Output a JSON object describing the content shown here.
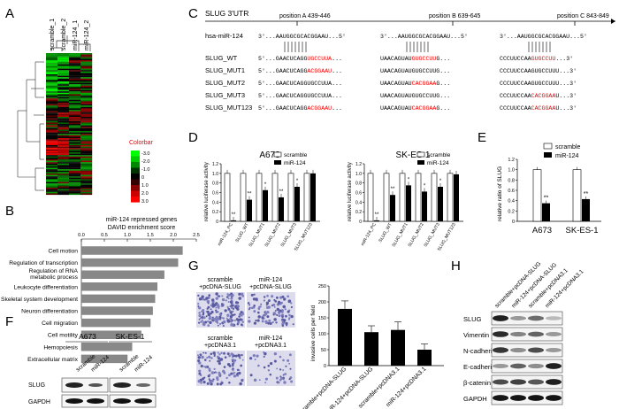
{
  "panels": {
    "A": "A",
    "B": "B",
    "C": "C",
    "D": "D",
    "E": "E",
    "F": "F",
    "G": "G",
    "H": "H"
  },
  "heatmap": {
    "columns": [
      "scramble_1",
      "scramble_2",
      "miR-124_1",
      "miR-124_2"
    ],
    "colorbar_title": "Colorbar",
    "colorbar_ticks": [
      "-3.0",
      "-2.0",
      "-1.0",
      "0",
      "1.0",
      "2.0",
      "3.0"
    ]
  },
  "enrichment": {
    "title_1": "miR-124 repressed genes",
    "title_2": "DAVID enrichment score",
    "ticks": [
      "0.0",
      "0.5",
      "1.0",
      "1.5",
      "2.0",
      "2.5"
    ],
    "items": [
      {
        "label": "Cell motion",
        "value": 2.2
      },
      {
        "label": "Regulation of transcription",
        "value": 2.1
      },
      {
        "label": "Regulation of RNA",
        "label2": "metabolic process",
        "value": 1.8
      },
      {
        "label": "Leukocyte differentiation",
        "value": 1.65
      },
      {
        "label": "Skeletal system development",
        "value": 1.6
      },
      {
        "label": "Neuron differentiation",
        "value": 1.55
      },
      {
        "label": "Cell migration",
        "value": 1.5
      },
      {
        "label": "Cell motility",
        "value": 1.3
      },
      {
        "label": "Hemopoiesis",
        "value": 1.1
      },
      {
        "label": "Extracellular matrix",
        "value": 1.0
      }
    ]
  },
  "utr": {
    "title": "SLUG 3'UTR",
    "positions": [
      "position A 439-446",
      "position B 639-645",
      "position C 843-849"
    ],
    "mir_label": "hsa-miR-124",
    "mir_seq": "3'...AAUGGCGCACGGAAU...5'",
    "rows": [
      {
        "name": "SLUG_WT",
        "seg1": [
          "5'...GAACUCAGG",
          "UGCCUUA",
          "..."
        ],
        "seg2": [
          "UAACAGUAU",
          "GUGCCUU",
          "G..."
        ],
        "seg3": [
          "CCCUUCCAA",
          "GUGCCUU",
          "...3'"
        ]
      },
      {
        "name": "SLUG_MUT1",
        "seg1": [
          "5'...GAACUCAGG",
          "ACGGAAU",
          "..."
        ],
        "seg2": [
          "UAACAGUAUGUGCCUUG...",
          ""
        ],
        "seg3": [
          "CCCUUCCAAGUGCCUUU...3'",
          ""
        ]
      },
      {
        "name": "SLUG_MUT2",
        "seg1": [
          "5'...GAACUCAGGUGCCUUA...",
          ""
        ],
        "seg2": [
          "UAACAGUAU",
          "CACGGAA",
          "G..."
        ],
        "seg3": [
          "CCCUUCCAAGUGCCUUU...3'",
          ""
        ]
      },
      {
        "name": "SLUG_MUT3",
        "seg1": [
          "5'...GAACUCAGGUGCCUUA...",
          ""
        ],
        "seg2": [
          "UAACAGUAUGUGCCUUG...",
          ""
        ],
        "seg3": [
          "CCCUUCCAA",
          "CACGGAA",
          "U...3'"
        ]
      },
      {
        "name": "SLUG_MUT123",
        "seg1": [
          "5'...GAACUCAGG",
          "ACGGAAU",
          "..."
        ],
        "seg2": [
          "UAACAGUAU",
          "CACGGAA",
          "G..."
        ],
        "seg3": [
          "CCCUUCCAA",
          "CACGGAA",
          "U...3'"
        ]
      }
    ]
  },
  "luciferase": {
    "ylabel": "relative luciferase activity",
    "legend": [
      "scramble",
      "miR-124"
    ],
    "categories": [
      "miR-124_PC",
      "SLUG_WT",
      "SLUG_MUT1",
      "SLUG_MUT2",
      "SLUG_MUT3",
      "SLUG_MUT123"
    ],
    "yticks": [
      "0",
      "0.2",
      "0.4",
      "0.6",
      "0.8",
      "1.0",
      "1.2"
    ],
    "charts": [
      {
        "title": "A673",
        "scramble": [
          1,
          1,
          1,
          1,
          1,
          1
        ],
        "mir": [
          0.02,
          0.45,
          0.65,
          0.5,
          0.72,
          1.0
        ],
        "sig": [
          "**",
          "**",
          "*",
          "**",
          "*",
          ""
        ]
      },
      {
        "title": "SK-ES-1",
        "scramble": [
          1,
          1,
          1,
          1,
          1,
          1
        ],
        "mir": [
          0.02,
          0.55,
          0.75,
          0.62,
          0.72,
          0.98
        ],
        "sig": [
          "**",
          "**",
          "*",
          "*",
          "*",
          ""
        ]
      }
    ]
  },
  "ratio": {
    "ylabel": "relative ratio of SLUG",
    "legend": [
      "scramble",
      "miR-124"
    ],
    "yticks": [
      "0",
      "0.2",
      "0.4",
      "0.6",
      "0.8",
      "1.0",
      "1.2"
    ],
    "categories": [
      "A673",
      "SK-ES-1"
    ],
    "scramble": [
      1.0,
      1.0
    ],
    "mir": [
      0.35,
      0.43
    ],
    "sig": [
      "**",
      "**"
    ]
  },
  "blotF": {
    "groups": [
      "A673",
      "SK-ES-1"
    ],
    "lanes": [
      "scramble",
      "miR-124",
      "scramble",
      "miR-124"
    ],
    "rows": [
      "SLUG",
      "GAPDH"
    ]
  },
  "invasion": {
    "images": [
      {
        "l1": "scramble",
        "l2": "+pcDNA-SLUG"
      },
      {
        "l1": "miR-124",
        "l2": "+pcDNA-SLUG"
      },
      {
        "l1": "scramble",
        "l2": "+pcDNA3.1"
      },
      {
        "l1": "miR-124",
        "l2": "+pcDNA3.1"
      }
    ],
    "ylabel": "invasive cells per field",
    "yticks": [
      "0",
      "50",
      "100",
      "150",
      "200",
      "250"
    ],
    "categories": [
      "scramble+pcDNA-SLUG",
      "miR-124+pcDNA-SLUG",
      "scramble+pcDNA3.1",
      "miR-124+pcDNA3.1"
    ],
    "values": [
      178,
      105,
      112,
      50
    ],
    "errors": [
      25,
      20,
      25,
      18
    ]
  },
  "blotH": {
    "lanes": [
      "scramble+pcDNA-SLUG",
      "miR-124+pcDNA-SLUG",
      "scramble+pcDNA3.1",
      "miR-124+pcDNA3.1"
    ],
    "rows": [
      "SLUG",
      "Vimentin",
      "N-cadherin",
      "E-cadherin",
      "β-catenin",
      "GAPDH"
    ]
  }
}
